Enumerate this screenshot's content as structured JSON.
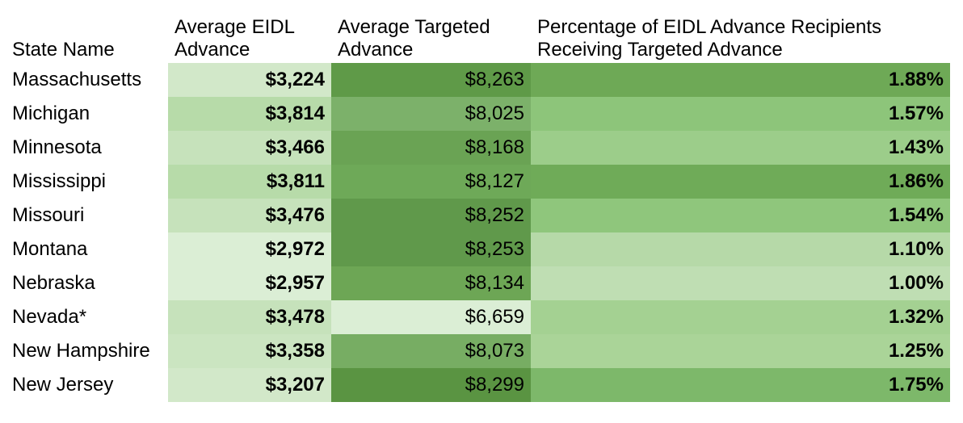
{
  "headers": {
    "state": "State Name",
    "eidl": "Average EIDL Advance",
    "targeted": "Average Targeted Advance",
    "percent": "Percentage of EIDL Advance Recipients Receiving Targeted Advance"
  },
  "rows": [
    {
      "state": "Massachusetts",
      "eidl": "$3,224",
      "targeted": "$8,263",
      "percent": "1.88%",
      "eidl_color": "#d2e8c9",
      "targeted_color": "#5f9a48",
      "percent_color": "#6ea956"
    },
    {
      "state": "Michigan",
      "eidl": "$3,814",
      "targeted": "$8,025",
      "percent": "1.57%",
      "eidl_color": "#b7dba9",
      "targeted_color": "#7cb16a",
      "percent_color": "#8dc57a"
    },
    {
      "state": "Minnesota",
      "eidl": "$3,466",
      "targeted": "$8,168",
      "percent": "1.43%",
      "eidl_color": "#c6e2bb",
      "targeted_color": "#6aa354",
      "percent_color": "#9ccd8a"
    },
    {
      "state": "Mississippi",
      "eidl": "$3,811",
      "targeted": "$8,127",
      "percent": "1.86%",
      "eidl_color": "#b7dba9",
      "targeted_color": "#6ea958",
      "percent_color": "#6fab58"
    },
    {
      "state": "Missouri",
      "eidl": "$3,476",
      "targeted": "$8,252",
      "percent": "1.54%",
      "eidl_color": "#c6e2bb",
      "targeted_color": "#60994b",
      "percent_color": "#8fc67c"
    },
    {
      "state": "Montana",
      "eidl": "$2,972",
      "targeted": "$8,253",
      "percent": "1.10%",
      "eidl_color": "#dbeed5",
      "targeted_color": "#60994b",
      "percent_color": "#b6d9a8"
    },
    {
      "state": "Nebraska",
      "eidl": "$2,957",
      "targeted": "$8,134",
      "percent": "1.00%",
      "eidl_color": "#dbeed5",
      "targeted_color": "#6da655",
      "percent_color": "#bfdeb3"
    },
    {
      "state": "Nevada*",
      "eidl": "$3,478",
      "targeted": "$6,659",
      "percent": "1.32%",
      "eidl_color": "#c6e2bb",
      "targeted_color": "#dbeed5",
      "percent_color": "#a4d192"
    },
    {
      "state": "New Hampshire",
      "eidl": "$3,358",
      "targeted": "$8,073",
      "percent": "1.25%",
      "eidl_color": "#cbe5c1",
      "targeted_color": "#77ad63",
      "percent_color": "#aad498"
    },
    {
      "state": "New Jersey",
      "eidl": "$3,207",
      "targeted": "$8,299",
      "percent": "1.75%",
      "eidl_color": "#d2e8c9",
      "targeted_color": "#5a9442",
      "percent_color": "#7db86a"
    }
  ]
}
